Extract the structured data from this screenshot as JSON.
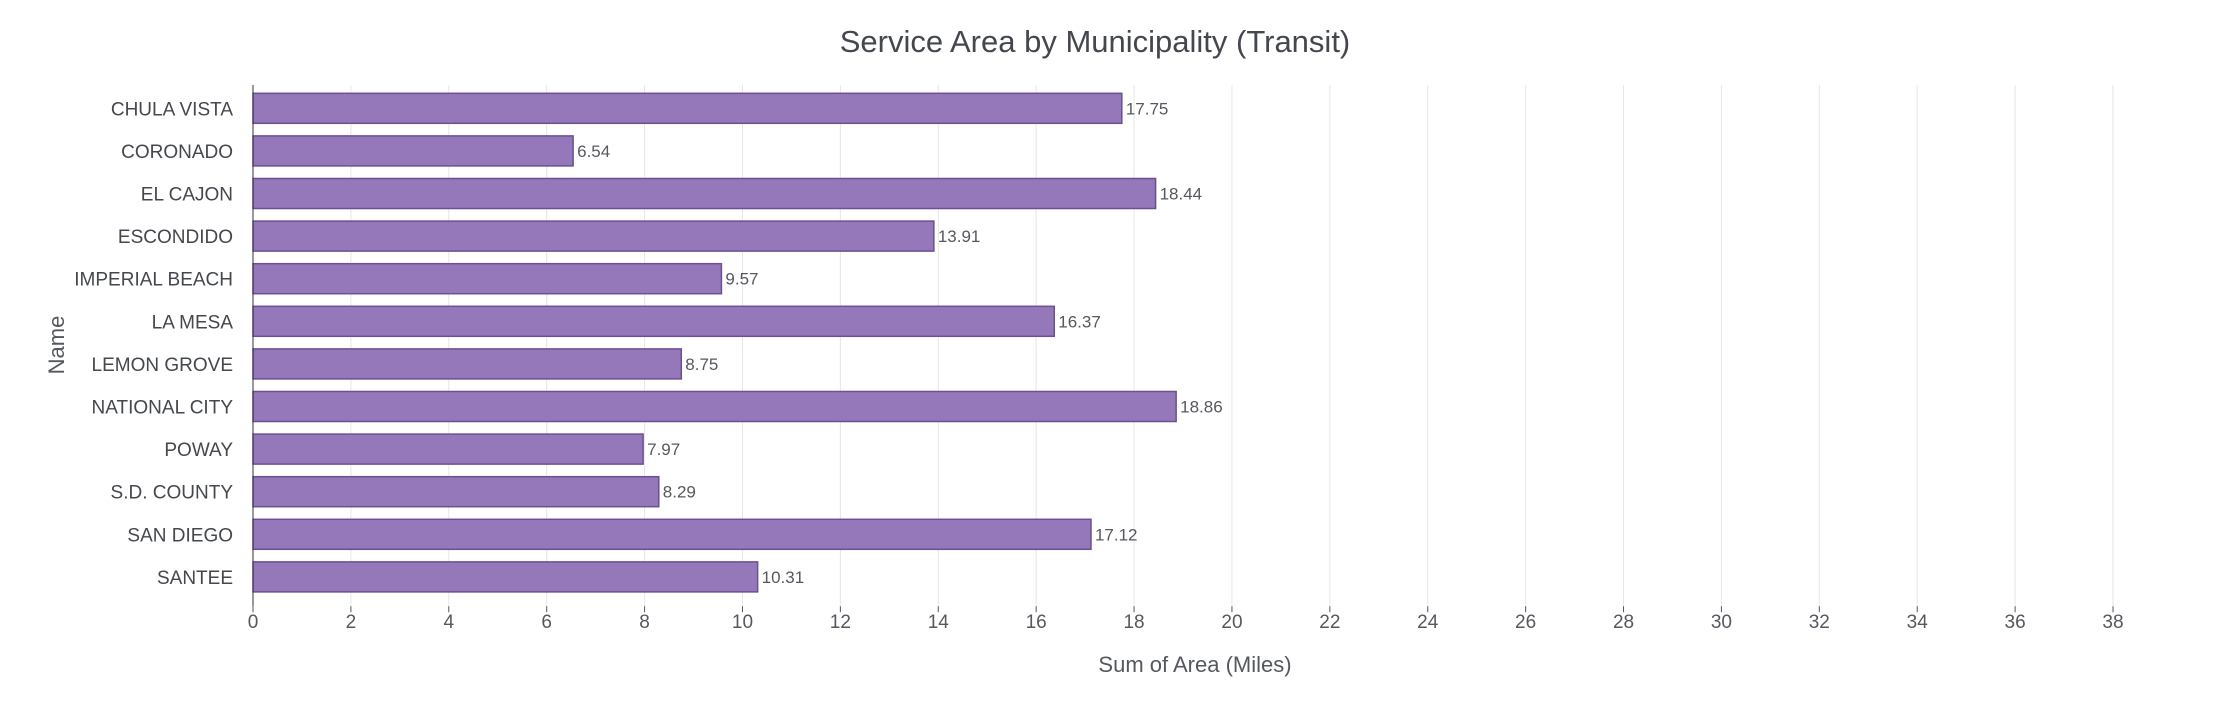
{
  "chart_data": {
    "type": "bar",
    "orientation": "horizontal",
    "title": "Service Area by Municipality (Transit)",
    "xlabel": "Sum of Area (Miles)",
    "ylabel": "Name",
    "categories": [
      "CHULA VISTA",
      "CORONADO",
      "EL CAJON",
      "ESCONDIDO",
      "IMPERIAL BEACH",
      "LA MESA",
      "LEMON GROVE",
      "NATIONAL CITY",
      "POWAY",
      "S.D. COUNTY",
      "SAN DIEGO",
      "SANTEE"
    ],
    "values": [
      17.75,
      6.54,
      18.44,
      13.91,
      9.57,
      16.37,
      8.75,
      18.86,
      7.97,
      8.29,
      17.12,
      10.31
    ],
    "value_labels": [
      "17.75",
      "6.54",
      "18.44",
      "13.91",
      "9.57",
      "16.37",
      "8.75",
      "18.86",
      "7.97",
      "8.29",
      "17.12",
      "10.31"
    ],
    "xlim": [
      0,
      38
    ],
    "xticks": [
      0,
      2,
      4,
      6,
      8,
      10,
      12,
      14,
      16,
      18,
      20,
      22,
      24,
      26,
      28,
      30,
      32,
      34,
      36,
      38
    ],
    "grid": true,
    "legend": "none",
    "colors": {
      "bar_fill": "#9578b9",
      "bar_stroke": "#6b4e96"
    }
  }
}
